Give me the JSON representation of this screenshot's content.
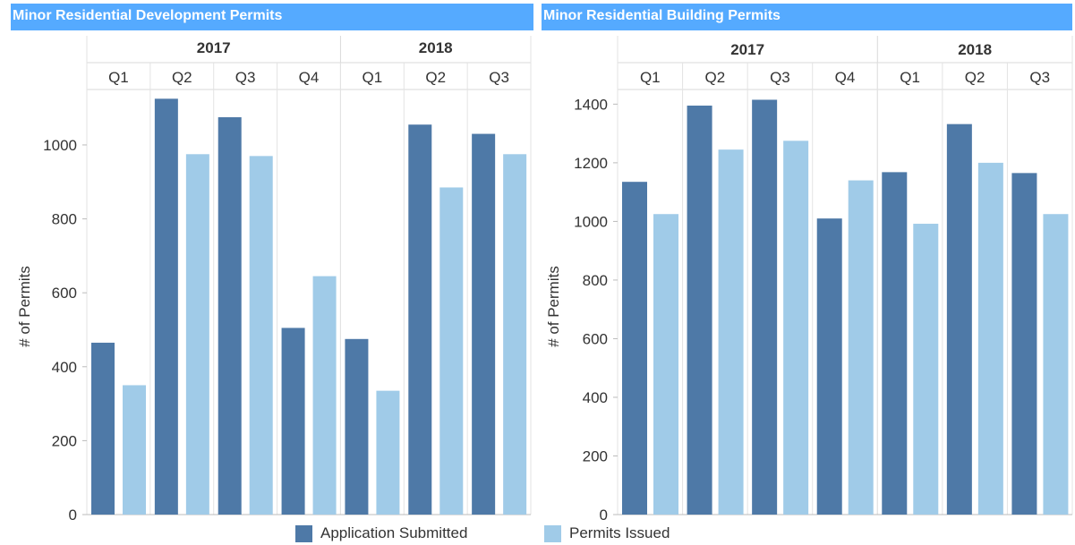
{
  "colors": {
    "submitted": "#4e79a7",
    "issued": "#a0cbe8",
    "title_bg": "#55aaff"
  },
  "legend": {
    "submitted_label": "Application Submitted",
    "issued_label": "Permits Issued"
  },
  "chart_data": [
    {
      "type": "bar",
      "title": "Minor Residential Development Permits",
      "ylabel": "# of Permits",
      "ylim": [
        0,
        1150
      ],
      "yticks": [
        0,
        200,
        400,
        600,
        800,
        1000
      ],
      "grid": false,
      "years": [
        {
          "label": "2017",
          "quarters": [
            "Q1",
            "Q2",
            "Q3",
            "Q4"
          ]
        },
        {
          "label": "2018",
          "quarters": [
            "Q1",
            "Q2",
            "Q3"
          ]
        }
      ],
      "categories": [
        "2017 Q1",
        "2017 Q2",
        "2017 Q3",
        "2017 Q4",
        "2018 Q1",
        "2018 Q2",
        "2018 Q3"
      ],
      "series": [
        {
          "name": "Application Submitted",
          "values": [
            465,
            1125,
            1075,
            505,
            475,
            1055,
            1030
          ]
        },
        {
          "name": "Permits Issued",
          "values": [
            350,
            975,
            970,
            645,
            335,
            885,
            975
          ]
        }
      ]
    },
    {
      "type": "bar",
      "title": "Minor Residential Building Permits",
      "ylabel": "# of Permits",
      "ylim": [
        0,
        1450
      ],
      "yticks": [
        0,
        200,
        400,
        600,
        800,
        1000,
        1200,
        1400
      ],
      "grid": false,
      "years": [
        {
          "label": "2017",
          "quarters": [
            "Q1",
            "Q2",
            "Q3",
            "Q4"
          ]
        },
        {
          "label": "2018",
          "quarters": [
            "Q1",
            "Q2",
            "Q3"
          ]
        }
      ],
      "categories": [
        "2017 Q1",
        "2017 Q2",
        "2017 Q3",
        "2017 Q4",
        "2018 Q1",
        "2018 Q2",
        "2018 Q3"
      ],
      "series": [
        {
          "name": "Application Submitted",
          "values": [
            1135,
            1395,
            1415,
            1010,
            1168,
            1332,
            1165
          ]
        },
        {
          "name": "Permits Issued",
          "values": [
            1025,
            1245,
            1275,
            1140,
            992,
            1200,
            1025
          ]
        }
      ]
    }
  ]
}
